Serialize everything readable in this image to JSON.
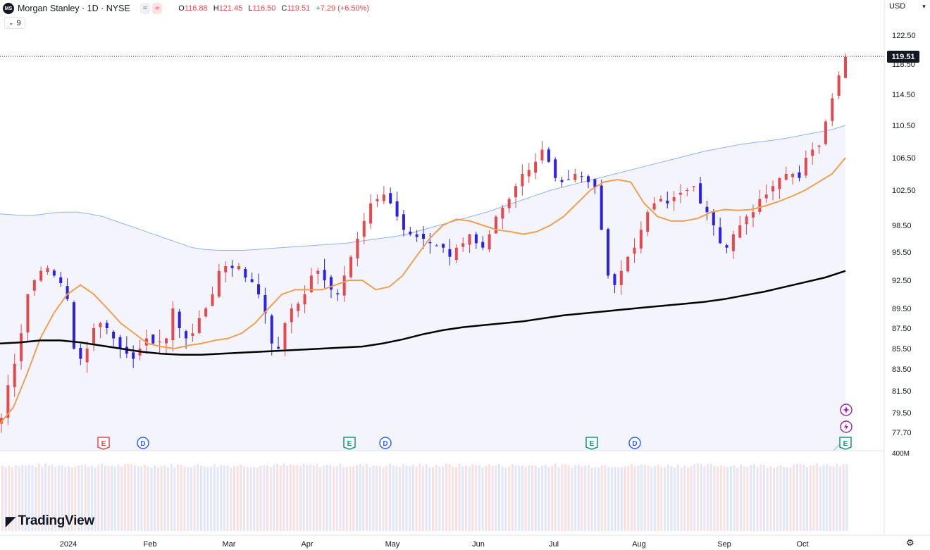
{
  "header": {
    "logo_text": "MS",
    "symbol": "Morgan Stanley · 1D · NYSE",
    "pill_a": "=",
    "pill_b": "≈",
    "ohlc": [
      {
        "label": "O",
        "value": "116.88"
      },
      {
        "label": "H",
        "value": "121.45"
      },
      {
        "label": "L",
        "value": "116.50"
      },
      {
        "label": "C",
        "value": "119.51"
      },
      {
        "label": "",
        "value": "+7.29 (+6.50%)"
      }
    ]
  },
  "indicator_toggle": {
    "count": "9"
  },
  "currency": "USD",
  "last_price": "119.51",
  "branding": "TradingView",
  "colors": {
    "up": "#e5484d",
    "down": "#2b1fe8",
    "sma_fast": "#f0a050",
    "sma_slow": "#000000",
    "band": "#8fb4f5",
    "band_fill": "#f4f4fc"
  },
  "chart_data": {
    "type": "candlestick",
    "y_ticks": [
      "122.50",
      "118.50",
      "114.50",
      "110.50",
      "106.50",
      "102.50",
      "98.50",
      "95.50",
      "92.50",
      "89.50",
      "87.50",
      "85.50",
      "83.50",
      "81.50",
      "79.50",
      "77.70"
    ],
    "volume_tick": "400M",
    "x_labels": [
      "2024",
      "Feb",
      "Mar",
      "Apr",
      "May",
      "Jun",
      "Jul",
      "Aug",
      "Sep",
      "Oct"
    ],
    "events": [
      {
        "kind": "E",
        "color": "#e5484d",
        "month": "Jan"
      },
      {
        "kind": "D",
        "color": "#2962ff",
        "month": "Jan"
      },
      {
        "kind": "E",
        "color": "#089981",
        "month": "Apr"
      },
      {
        "kind": "D",
        "color": "#2962ff",
        "month": "Apr"
      },
      {
        "kind": "E",
        "color": "#089981",
        "month": "Jul"
      },
      {
        "kind": "D",
        "color": "#2962ff",
        "month": "Jul"
      },
      {
        "kind": "E",
        "color": "#089981",
        "month": "Oct"
      }
    ],
    "last_close": 119.51,
    "upper_band": [
      99.8,
      99.7,
      99.6,
      99.7,
      99.9,
      100.0,
      100.0,
      99.8,
      99.5,
      99.0,
      98.5,
      98.0,
      97.5,
      97.0,
      96.5,
      96.0,
      95.8,
      95.7,
      95.7,
      95.7,
      95.8,
      95.9,
      96.0,
      96.1,
      96.2,
      96.3,
      96.4,
      96.5,
      96.7,
      96.9,
      97.1,
      97.3,
      97.6,
      98.0,
      98.4,
      98.8,
      99.2,
      99.6,
      100.0,
      100.5,
      101.0,
      101.5,
      102.0,
      102.5,
      102.9,
      103.3,
      103.7,
      104.1,
      104.5,
      104.9,
      105.3,
      105.7,
      106.1,
      106.5,
      106.9,
      107.3,
      107.6,
      107.9,
      108.2,
      108.4,
      108.6,
      108.8,
      109.1,
      109.4,
      109.7,
      110.0,
      110.5
    ],
    "sma_fast": [
      78.5,
      80.0,
      83.0,
      86.5,
      89.0,
      91.0,
      92.0,
      91.0,
      89.5,
      88.0,
      87.0,
      86.0,
      85.7,
      85.5,
      85.8,
      86.0,
      86.3,
      86.5,
      87.0,
      88.0,
      89.5,
      91.0,
      91.5,
      91.5,
      91.5,
      92.0,
      92.5,
      92.5,
      91.5,
      91.8,
      93.0,
      95.0,
      97.0,
      98.5,
      99.2,
      99.0,
      98.5,
      98.0,
      97.8,
      97.5,
      97.8,
      98.5,
      99.5,
      101.0,
      102.5,
      103.5,
      103.8,
      103.5,
      101.0,
      99.5,
      99.0,
      99.0,
      99.3,
      100.0,
      100.3,
      100.2,
      100.3,
      100.7,
      101.2,
      101.8,
      102.5,
      103.5,
      104.5,
      106.5
    ],
    "sma_slow": [
      86.0,
      86.1,
      86.3,
      86.3,
      86.1,
      85.8,
      85.5,
      85.2,
      85.0,
      84.9,
      84.9,
      85.0,
      85.1,
      85.2,
      85.3,
      85.4,
      85.5,
      85.6,
      85.7,
      86.0,
      86.4,
      86.9,
      87.3,
      87.6,
      87.8,
      88.0,
      88.2,
      88.5,
      88.8,
      89.0,
      89.2,
      89.4,
      89.6,
      89.8,
      90.0,
      90.2,
      90.5,
      90.9,
      91.3,
      91.8,
      92.3,
      92.8,
      93.5
    ]
  }
}
